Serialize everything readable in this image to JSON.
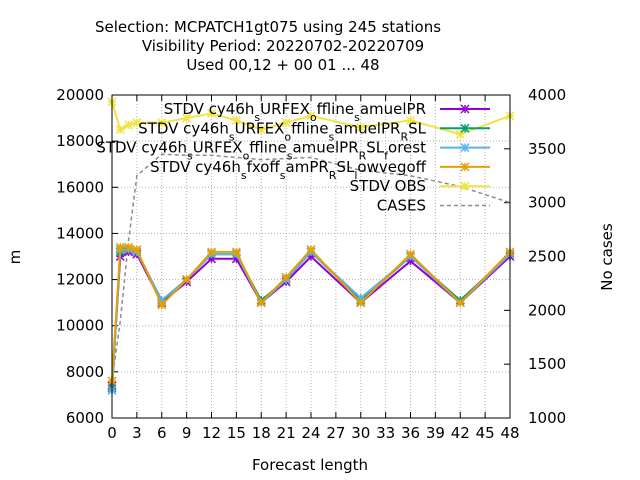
{
  "chart_data": {
    "type": "line",
    "title_lines": [
      "Selection: MCPATCH1gt075 using   245 stations",
      "Visibility   Period: 20220702-20220709",
      "Used  00,12 + 00 01 ... 48"
    ],
    "xlabel": "Forecast length",
    "ylabel": "m",
    "y2label": "No cases",
    "xlim": [
      0,
      48
    ],
    "ylim": [
      6000,
      20000
    ],
    "y2lim": [
      1000,
      4000
    ],
    "xticks": [
      "0",
      "3",
      "6",
      "9",
      "12",
      "15",
      "18",
      "21",
      "24",
      "27",
      "30",
      "33",
      "36",
      "39",
      "42",
      "45",
      "48"
    ],
    "yticks": [
      "6000",
      "8000",
      "10000",
      "12000",
      "14000",
      "16000",
      "18000",
      "20000"
    ],
    "y2ticks": [
      "1000",
      "1500",
      "2000",
      "2500",
      "3000",
      "3500",
      "4000"
    ],
    "grid": true,
    "legend_position": "top-right",
    "x": [
      0,
      1,
      2,
      3,
      6,
      9,
      12,
      15,
      18,
      21,
      24,
      30,
      36,
      42,
      48
    ],
    "series": [
      {
        "name": "STDV cy46h_s URFEX_o ffline_s amuelPR",
        "label_parts": [
          [
            "STDV cy46h",
            ""
          ],
          [
            "s",
            "sub"
          ],
          [
            "URFEX",
            ""
          ],
          [
            "o",
            "sub"
          ],
          [
            "ffline",
            ""
          ],
          [
            "s",
            "sub"
          ],
          [
            "amuelPR",
            ""
          ]
        ],
        "color": "#9400d3",
        "marker": "x",
        "axis": "left",
        "values": [
          7400,
          13000,
          13200,
          13100,
          11000,
          11900,
          12900,
          12900,
          11000,
          11900,
          13000,
          11000,
          12800,
          11000,
          13000
        ]
      },
      {
        "name": "STDV cy46h_s URFEX_o ffline_s amuelPR_R SL",
        "label_parts": [
          [
            "STDV cy46h",
            ""
          ],
          [
            "s",
            "sub"
          ],
          [
            "URFEX",
            ""
          ],
          [
            "o",
            "sub"
          ],
          [
            "ffline",
            ""
          ],
          [
            "s",
            "sub"
          ],
          [
            "amuelPR",
            ""
          ],
          [
            "R",
            "sub"
          ],
          [
            "SL",
            ""
          ]
        ],
        "color": "#009e73",
        "marker": "x",
        "axis": "left",
        "values": [
          7300,
          13200,
          13300,
          13200,
          11100,
          12000,
          13100,
          13100,
          11100,
          12000,
          13200,
          11100,
          13000,
          11100,
          13100
        ]
      },
      {
        "name": "STDV cy46h_s URFEX_o ffline_s amuelPR_R SL_f orest",
        "label_parts": [
          [
            "STDV cy46h",
            ""
          ],
          [
            "s",
            "sub"
          ],
          [
            "URFEX",
            ""
          ],
          [
            "o",
            "sub"
          ],
          [
            "ffline",
            ""
          ],
          [
            "s",
            "sub"
          ],
          [
            "amuelPR",
            ""
          ],
          [
            "R",
            "sub"
          ],
          [
            "SL",
            ""
          ],
          [
            "f",
            "sub"
          ],
          [
            "orest",
            ""
          ]
        ],
        "color": "#56b4e9",
        "marker": "x",
        "axis": "left",
        "values": [
          7200,
          13300,
          13300,
          13200,
          11100,
          12000,
          13100,
          13100,
          11000,
          12000,
          13200,
          11200,
          13000,
          11000,
          13100
        ]
      },
      {
        "name": "STDV cy46h_s fxoff_s amPR_R SL_l owvegoff",
        "label_parts": [
          [
            "STDV cy46h",
            ""
          ],
          [
            "s",
            "sub"
          ],
          [
            "fxoff",
            ""
          ],
          [
            "s",
            "sub"
          ],
          [
            "amPR",
            ""
          ],
          [
            "R",
            "sub"
          ],
          [
            "SL",
            ""
          ],
          [
            "l",
            "sub"
          ],
          [
            "owvegoff",
            ""
          ]
        ],
        "color": "#e69f00",
        "marker": "x",
        "axis": "left",
        "values": [
          7600,
          13400,
          13400,
          13300,
          10900,
          12000,
          13200,
          13200,
          11000,
          12100,
          13300,
          11000,
          13100,
          11000,
          13200
        ]
      },
      {
        "name": "STDV OBS",
        "label_parts": [
          [
            "STDV OBS",
            ""
          ]
        ],
        "color": "#f0e442",
        "marker": "x",
        "axis": "left",
        "values": [
          19700,
          18500,
          18700,
          18800,
          18800,
          19000,
          19200,
          18900,
          18500,
          18800,
          19100,
          18600,
          18900,
          18300,
          19100
        ]
      },
      {
        "name": "CASES",
        "label_parts": [
          [
            "CASES",
            ""
          ]
        ],
        "color": "#8c8c8c",
        "marker": "none",
        "dash": true,
        "axis": "right",
        "x": [
          0,
          1,
          2,
          3,
          6,
          9,
          12,
          15,
          18,
          21,
          24,
          30,
          36,
          42,
          48
        ],
        "values": [
          1350,
          1900,
          2650,
          3250,
          3450,
          3440,
          3440,
          3420,
          3400,
          3410,
          3420,
          3300,
          3250,
          3150,
          3000
        ]
      }
    ]
  }
}
